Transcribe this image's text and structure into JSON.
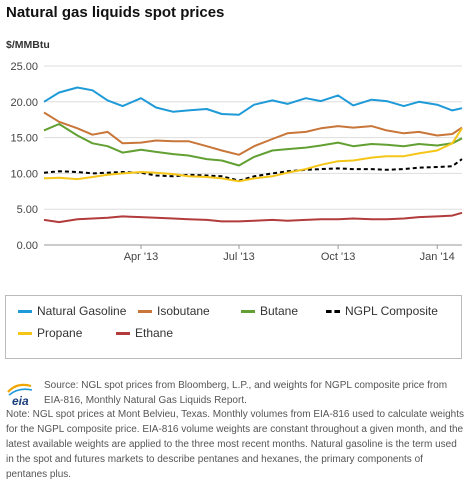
{
  "header": {
    "title": "Natural gas liquids spot prices",
    "unit": "$/MMBtu"
  },
  "footer": {
    "logo_text": "eia",
    "source": "Source: NGL spot prices from Bloomberg, L.P., and weights for NGPL composite price from EIA-816, Monthly Natural Gas Liquids Report.",
    "note": "Note: NGL spot prices at Mont Belvieu, Texas. Monthly volumes from EIA-816 used to calculate weights for the NGPL composite price. EIA-816 volume weights are constant throughout a given month, and the latest available weights are applied to the three most recent months. Natural gasoline is the term used in the spot and futures markets to describe pentanes and hexanes, the primary components of pentanes plus."
  },
  "chart_data": {
    "type": "line",
    "title": "Natural gas liquids spot prices",
    "ylabel": "$/MMBtu",
    "ylim": [
      0,
      25
    ],
    "yticks": [
      "0.00",
      "5.00",
      "10.00",
      "15.00",
      "20.00",
      "25.00"
    ],
    "yticks_values": [
      0,
      5,
      10,
      15,
      20,
      25
    ],
    "xlim": [
      "2013-01-01",
      "2014-01-24"
    ],
    "xticks": [
      {
        "date": "2013-04-01",
        "label": "Apr '13"
      },
      {
        "date": "2013-07-01",
        "label": "Jul '13"
      },
      {
        "date": "2013-10-01",
        "label": "Oct '13"
      },
      {
        "date": "2014-01-01",
        "label": "Jan '14"
      }
    ],
    "grid": "horizontal",
    "legend_position": "bottom",
    "series": [
      {
        "name": "Natural Gasoline",
        "color": "#1f9ad8",
        "dash": false,
        "x": [
          "2013-01-01",
          "2013-01-15",
          "2013-02-01",
          "2013-02-15",
          "2013-03-01",
          "2013-03-15",
          "2013-04-01",
          "2013-04-15",
          "2013-05-01",
          "2013-05-15",
          "2013-06-01",
          "2013-06-15",
          "2013-07-01",
          "2013-07-15",
          "2013-08-01",
          "2013-08-15",
          "2013-09-01",
          "2013-09-15",
          "2013-10-01",
          "2013-10-15",
          "2013-11-01",
          "2013-11-15",
          "2013-12-01",
          "2013-12-15",
          "2014-01-01",
          "2014-01-15",
          "2014-01-24"
        ],
        "y": [
          20.0,
          21.3,
          22.0,
          21.6,
          20.2,
          19.4,
          20.5,
          19.2,
          18.6,
          18.8,
          19.0,
          18.3,
          18.2,
          19.6,
          20.2,
          19.7,
          20.5,
          20.1,
          20.9,
          19.5,
          20.3,
          20.1,
          19.4,
          20.0,
          19.6,
          18.8,
          19.1
        ]
      },
      {
        "name": "Isobutane",
        "color": "#c8763a",
        "dash": false,
        "x": [
          "2013-01-01",
          "2013-01-15",
          "2013-02-01",
          "2013-02-15",
          "2013-03-01",
          "2013-03-15",
          "2013-04-01",
          "2013-04-15",
          "2013-05-01",
          "2013-05-15",
          "2013-06-01",
          "2013-06-15",
          "2013-07-01",
          "2013-07-15",
          "2013-08-01",
          "2013-08-15",
          "2013-09-01",
          "2013-09-15",
          "2013-10-01",
          "2013-10-15",
          "2013-11-01",
          "2013-11-15",
          "2013-12-01",
          "2013-12-15",
          "2014-01-01",
          "2014-01-15",
          "2014-01-24"
        ],
        "y": [
          18.5,
          17.2,
          16.3,
          15.4,
          15.8,
          14.2,
          14.3,
          14.6,
          14.5,
          14.5,
          13.8,
          13.2,
          12.6,
          13.8,
          14.8,
          15.6,
          15.8,
          16.3,
          16.6,
          16.4,
          16.6,
          16.0,
          15.6,
          15.8,
          15.3,
          15.5,
          16.4
        ]
      },
      {
        "name": "Butane",
        "color": "#62a033",
        "dash": false,
        "x": [
          "2013-01-01",
          "2013-01-15",
          "2013-02-01",
          "2013-02-15",
          "2013-03-01",
          "2013-03-15",
          "2013-04-01",
          "2013-04-15",
          "2013-05-01",
          "2013-05-15",
          "2013-06-01",
          "2013-06-15",
          "2013-07-01",
          "2013-07-15",
          "2013-08-01",
          "2013-08-15",
          "2013-09-01",
          "2013-09-15",
          "2013-10-01",
          "2013-10-15",
          "2013-11-01",
          "2013-11-15",
          "2013-12-01",
          "2013-12-15",
          "2014-01-01",
          "2014-01-15",
          "2014-01-24"
        ],
        "y": [
          16.0,
          16.9,
          15.3,
          14.2,
          13.8,
          12.9,
          13.3,
          13.0,
          12.7,
          12.5,
          12.0,
          11.8,
          11.1,
          12.3,
          13.2,
          13.4,
          13.6,
          13.9,
          14.3,
          13.8,
          14.1,
          14.0,
          13.8,
          14.1,
          13.9,
          14.2,
          14.9
        ]
      },
      {
        "name": "NGPL Composite",
        "color": "#000000",
        "dash": true,
        "x": [
          "2013-01-01",
          "2013-01-15",
          "2013-02-01",
          "2013-02-15",
          "2013-03-01",
          "2013-03-15",
          "2013-04-01",
          "2013-04-15",
          "2013-05-01",
          "2013-05-15",
          "2013-06-01",
          "2013-06-15",
          "2013-07-01",
          "2013-07-15",
          "2013-08-01",
          "2013-08-15",
          "2013-09-01",
          "2013-09-15",
          "2013-10-01",
          "2013-10-15",
          "2013-11-01",
          "2013-11-15",
          "2013-12-01",
          "2013-12-15",
          "2014-01-01",
          "2014-01-15",
          "2014-01-24"
        ],
        "y": [
          10.1,
          10.3,
          10.2,
          10.0,
          10.1,
          10.2,
          10.1,
          9.7,
          9.6,
          9.8,
          9.7,
          9.6,
          9.0,
          9.6,
          10.0,
          10.3,
          10.5,
          10.6,
          10.7,
          10.6,
          10.6,
          10.5,
          10.6,
          10.8,
          10.9,
          11.0,
          12.0
        ]
      },
      {
        "name": "Propane",
        "color": "#f5c518",
        "dash": false,
        "x": [
          "2013-01-01",
          "2013-01-15",
          "2013-02-01",
          "2013-02-15",
          "2013-03-01",
          "2013-03-15",
          "2013-04-01",
          "2013-04-15",
          "2013-05-01",
          "2013-05-15",
          "2013-06-01",
          "2013-06-15",
          "2013-07-01",
          "2013-07-15",
          "2013-08-01",
          "2013-08-15",
          "2013-09-01",
          "2013-09-15",
          "2013-10-01",
          "2013-10-15",
          "2013-11-01",
          "2013-11-15",
          "2013-12-01",
          "2013-12-15",
          "2014-01-01",
          "2014-01-15",
          "2014-01-24"
        ],
        "y": [
          9.3,
          9.4,
          9.2,
          9.5,
          9.8,
          10.0,
          10.2,
          10.1,
          9.9,
          9.6,
          9.5,
          9.3,
          8.9,
          9.3,
          9.6,
          10.1,
          10.6,
          11.2,
          11.7,
          11.8,
          12.2,
          12.4,
          12.4,
          12.8,
          13.2,
          14.2,
          16.3
        ]
      },
      {
        "name": "Ethane",
        "color": "#b23b3b",
        "dash": false,
        "x": [
          "2013-01-01",
          "2013-01-15",
          "2013-02-01",
          "2013-02-15",
          "2013-03-01",
          "2013-03-15",
          "2013-04-01",
          "2013-04-15",
          "2013-05-01",
          "2013-05-15",
          "2013-06-01",
          "2013-06-15",
          "2013-07-01",
          "2013-07-15",
          "2013-08-01",
          "2013-08-15",
          "2013-09-01",
          "2013-09-15",
          "2013-10-01",
          "2013-10-15",
          "2013-11-01",
          "2013-11-15",
          "2013-12-01",
          "2013-12-15",
          "2014-01-01",
          "2014-01-15",
          "2014-01-24"
        ],
        "y": [
          3.5,
          3.2,
          3.6,
          3.7,
          3.8,
          4.0,
          3.9,
          3.8,
          3.7,
          3.6,
          3.5,
          3.3,
          3.3,
          3.4,
          3.5,
          3.4,
          3.5,
          3.6,
          3.6,
          3.7,
          3.6,
          3.6,
          3.7,
          3.9,
          4.0,
          4.1,
          4.5
        ]
      }
    ]
  }
}
